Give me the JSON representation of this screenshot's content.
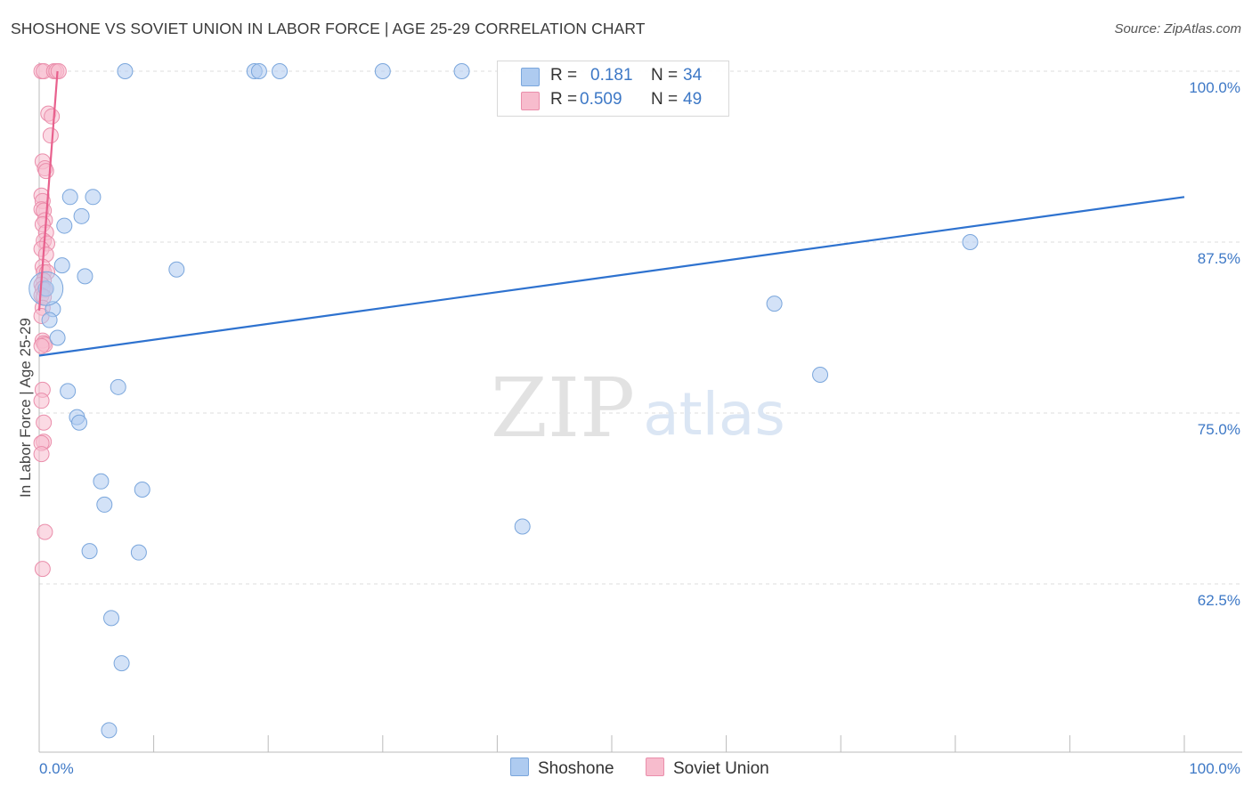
{
  "title": "SHOSHONE VS SOVIET UNION IN LABOR FORCE | AGE 25-29 CORRELATION CHART",
  "source": "Source: ZipAtlas.com",
  "watermark": {
    "zip": "ZIP",
    "atlas": "atlas"
  },
  "legend": {
    "rows": [
      {
        "r_label": "R =",
        "r_value": "0.181",
        "n_label": "N =",
        "n_value": "34"
      },
      {
        "r_label": "R =",
        "r_value": "0.509",
        "n_label": "N =",
        "n_value": "49"
      }
    ]
  },
  "bottom_legend": {
    "items": [
      "Shoshone",
      "Soviet Union"
    ]
  },
  "colors": {
    "shoshone_fill": "#aecbf0",
    "shoshone_stroke": "#7aa6dc",
    "shoshone_line": "#2e72cf",
    "soviet_fill": "#f7bccd",
    "soviet_stroke": "#ea8eab",
    "soviet_line": "#e8608d",
    "tick_text": "#3d78c6",
    "grid": "#dddddd"
  },
  "chart_data": {
    "type": "scatter",
    "title": "SHOSHONE VS SOVIET UNION IN LABOR FORCE | AGE 25-29 CORRELATION CHART",
    "xlabel": "",
    "ylabel": "In Labor Force | Age 25-29",
    "xlim": [
      0,
      100
    ],
    "ylim": [
      50.5,
      101
    ],
    "x_tick_labels": [
      {
        "value": 0,
        "label": "0.0%"
      },
      {
        "value": 100,
        "label": "100.0%"
      }
    ],
    "y_tick_labels": [
      {
        "value": 100,
        "label": "100.0%"
      },
      {
        "value": 87.5,
        "label": "87.5%"
      },
      {
        "value": 75,
        "label": "75.0%"
      },
      {
        "value": 62.5,
        "label": "62.5%"
      }
    ],
    "grid": true,
    "legend_position": "top-center",
    "series": [
      {
        "name": "Shoshone",
        "R": 0.181,
        "N": 34,
        "trend": {
          "x": [
            0,
            100
          ],
          "y": [
            79.2,
            90.8
          ]
        },
        "points": [
          {
            "x": 0.6,
            "y": 84.1
          },
          {
            "x": 7.5,
            "y": 100.0
          },
          {
            "x": 18.8,
            "y": 100.0
          },
          {
            "x": 19.2,
            "y": 100.0
          },
          {
            "x": 21.0,
            "y": 100.0
          },
          {
            "x": 30.0,
            "y": 100.0
          },
          {
            "x": 36.9,
            "y": 100.0
          },
          {
            "x": 2.7,
            "y": 90.8
          },
          {
            "x": 4.7,
            "y": 90.8
          },
          {
            "x": 3.7,
            "y": 89.4
          },
          {
            "x": 2.2,
            "y": 88.7
          },
          {
            "x": 2.0,
            "y": 85.8
          },
          {
            "x": 4.0,
            "y": 85.0
          },
          {
            "x": 12.0,
            "y": 85.5
          },
          {
            "x": 1.2,
            "y": 82.6
          },
          {
            "x": 0.9,
            "y": 81.8
          },
          {
            "x": 1.6,
            "y": 80.5
          },
          {
            "x": 81.3,
            "y": 87.5
          },
          {
            "x": 64.2,
            "y": 83.0
          },
          {
            "x": 68.2,
            "y": 77.8
          },
          {
            "x": 2.5,
            "y": 76.6
          },
          {
            "x": 6.9,
            "y": 76.9
          },
          {
            "x": 3.3,
            "y": 74.7
          },
          {
            "x": 3.5,
            "y": 74.3
          },
          {
            "x": 5.4,
            "y": 70.0
          },
          {
            "x": 5.7,
            "y": 68.3
          },
          {
            "x": 9.0,
            "y": 69.4
          },
          {
            "x": 42.2,
            "y": 66.7
          },
          {
            "x": 4.4,
            "y": 64.9
          },
          {
            "x": 8.7,
            "y": 64.8
          },
          {
            "x": 6.3,
            "y": 60.0
          },
          {
            "x": 7.2,
            "y": 56.7
          },
          {
            "x": 6.1,
            "y": 51.8
          }
        ]
      },
      {
        "name": "Soviet Union",
        "R": 0.509,
        "N": 49,
        "trend": {
          "x": [
            0,
            1.6
          ],
          "y": [
            82.5,
            100.0
          ]
        },
        "points": [
          {
            "x": 0.2,
            "y": 100.0
          },
          {
            "x": 0.4,
            "y": 100.0
          },
          {
            "x": 1.3,
            "y": 100.0
          },
          {
            "x": 1.5,
            "y": 100.0
          },
          {
            "x": 1.7,
            "y": 100.0
          },
          {
            "x": 0.8,
            "y": 96.9
          },
          {
            "x": 1.1,
            "y": 96.7
          },
          {
            "x": 1.0,
            "y": 95.3
          },
          {
            "x": 0.3,
            "y": 93.4
          },
          {
            "x": 0.5,
            "y": 92.9
          },
          {
            "x": 0.6,
            "y": 92.7
          },
          {
            "x": 0.2,
            "y": 90.9
          },
          {
            "x": 0.3,
            "y": 90.5
          },
          {
            "x": 0.2,
            "y": 89.9
          },
          {
            "x": 0.4,
            "y": 89.8
          },
          {
            "x": 0.5,
            "y": 89.1
          },
          {
            "x": 0.3,
            "y": 88.8
          },
          {
            "x": 0.6,
            "y": 88.2
          },
          {
            "x": 0.4,
            "y": 87.6
          },
          {
            "x": 0.7,
            "y": 87.4
          },
          {
            "x": 0.2,
            "y": 87.0
          },
          {
            "x": 0.6,
            "y": 86.6
          },
          {
            "x": 0.3,
            "y": 85.7
          },
          {
            "x": 0.4,
            "y": 85.3
          },
          {
            "x": 0.7,
            "y": 85.3
          },
          {
            "x": 0.4,
            "y": 84.7
          },
          {
            "x": 0.2,
            "y": 84.4
          },
          {
            "x": 0.3,
            "y": 84.1
          },
          {
            "x": 0.5,
            "y": 84.0
          },
          {
            "x": 0.2,
            "y": 83.6
          },
          {
            "x": 0.4,
            "y": 83.5
          },
          {
            "x": 0.3,
            "y": 82.7
          },
          {
            "x": 0.2,
            "y": 82.1
          },
          {
            "x": 0.3,
            "y": 80.3
          },
          {
            "x": 0.4,
            "y": 80.1
          },
          {
            "x": 0.5,
            "y": 80.0
          },
          {
            "x": 0.2,
            "y": 79.9
          },
          {
            "x": 0.3,
            "y": 76.7
          },
          {
            "x": 0.2,
            "y": 75.9
          },
          {
            "x": 0.4,
            "y": 74.3
          },
          {
            "x": 0.4,
            "y": 72.9
          },
          {
            "x": 0.2,
            "y": 72.8
          },
          {
            "x": 0.2,
            "y": 72.0
          },
          {
            "x": 0.5,
            "y": 66.3
          },
          {
            "x": 0.3,
            "y": 63.6
          }
        ]
      }
    ]
  }
}
